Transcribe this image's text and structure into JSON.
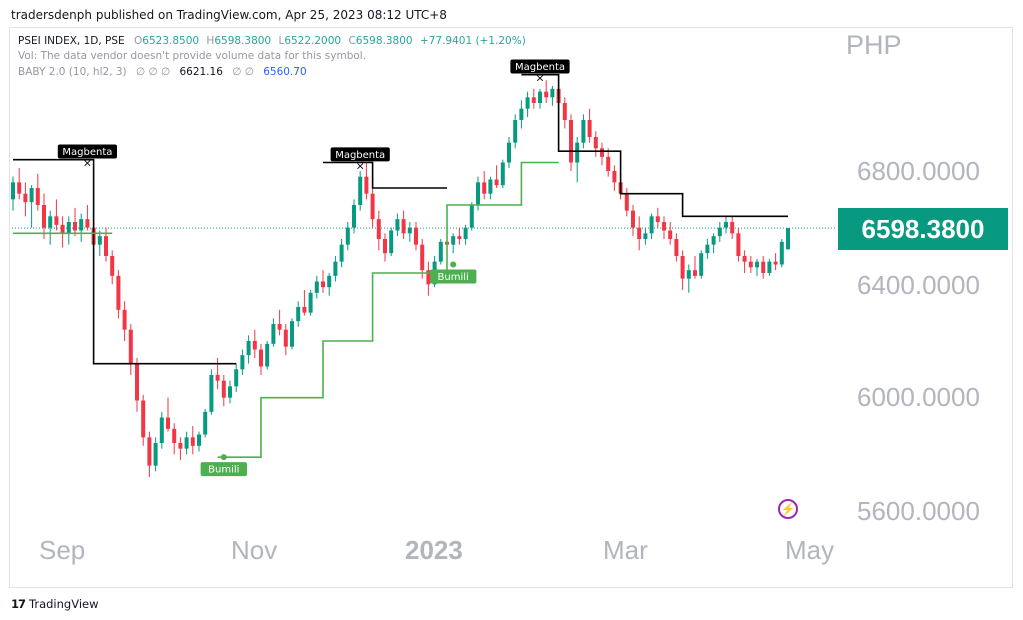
{
  "header": {
    "publisher_line": "tradersdenph published on TradingView.com, Apr 25, 2023 08:12 UTC+8"
  },
  "legend": {
    "symbol": "PSEI INDEX, 1D, PSE",
    "o_label": "O",
    "o_value": "6523.8500",
    "h_label": "H",
    "h_value": "6598.3800",
    "l_label": "L",
    "l_value": "6522.2000",
    "c_label": "C",
    "c_value": "6598.3800",
    "change": "+77.9401 (+1.20%)",
    "vol_note": "Vol: The data vendor doesn't provide volume data for this symbol.",
    "indicator_name": "BABY 2.0 (10, hl2, 3)",
    "indicator_na": "∅  ∅  ∅",
    "indicator_value_1": "6621.16",
    "indicator_na_2": "∅  ∅",
    "indicator_value_2": "6560.70"
  },
  "axis": {
    "currency": "PHP",
    "y_labels": [
      "6800.0000",
      "6400.0000",
      "6000.0000",
      "5600.0000"
    ],
    "x_labels": [
      "Sep",
      "Nov",
      "2023",
      "Mar",
      "May"
    ],
    "last_price": "6598.3800"
  },
  "colors": {
    "up": "#089981",
    "down": "#f23645",
    "resistance": "#000000",
    "support": "#4caf50",
    "last_price_bg": "#089981"
  },
  "footer": {
    "brand": "TradingView",
    "logo": "17"
  },
  "icons": {
    "bolt": "lightning-icon"
  },
  "chart_data": {
    "type": "candlestick",
    "ylim": [
      5400,
      7300
    ],
    "last_price": 6598.38,
    "candles": [
      [
        6700,
        6780,
        6660,
        6760
      ],
      [
        6760,
        6810,
        6700,
        6720
      ],
      [
        6720,
        6760,
        6640,
        6690
      ],
      [
        6690,
        6750,
        6600,
        6740
      ],
      [
        6740,
        6790,
        6660,
        6680
      ],
      [
        6680,
        6720,
        6560,
        6600
      ],
      [
        6600,
        6660,
        6540,
        6640
      ],
      [
        6640,
        6700,
        6590,
        6610
      ],
      [
        6610,
        6640,
        6530,
        6580
      ],
      [
        6580,
        6640,
        6540,
        6620
      ],
      [
        6620,
        6670,
        6570,
        6590
      ],
      [
        6590,
        6650,
        6550,
        6630
      ],
      [
        6630,
        6680,
        6590,
        6600
      ],
      [
        6600,
        6620,
        6510,
        6540
      ],
      [
        6540,
        6590,
        6500,
        6570
      ],
      [
        6570,
        6600,
        6480,
        6500
      ],
      [
        6500,
        6520,
        6400,
        6430
      ],
      [
        6430,
        6450,
        6280,
        6310
      ],
      [
        6310,
        6340,
        6200,
        6240
      ],
      [
        6240,
        6260,
        6080,
        6120
      ],
      [
        6120,
        6140,
        5950,
        5990
      ],
      [
        5990,
        6010,
        5830,
        5860
      ],
      [
        5860,
        5880,
        5720,
        5760
      ],
      [
        5760,
        5860,
        5740,
        5840
      ],
      [
        5840,
        5950,
        5820,
        5930
      ],
      [
        5930,
        6000,
        5880,
        5890
      ],
      [
        5890,
        5910,
        5800,
        5840
      ],
      [
        5840,
        5860,
        5780,
        5820
      ],
      [
        5820,
        5880,
        5800,
        5860
      ],
      [
        5860,
        5900,
        5800,
        5830
      ],
      [
        5830,
        5880,
        5810,
        5870
      ],
      [
        5870,
        5960,
        5860,
        5950
      ],
      [
        5950,
        6100,
        5940,
        6080
      ],
      [
        6080,
        6140,
        6030,
        6060
      ],
      [
        6060,
        6080,
        5970,
        6000
      ],
      [
        6000,
        6060,
        5980,
        6040
      ],
      [
        6040,
        6120,
        6020,
        6100
      ],
      [
        6100,
        6170,
        6080,
        6150
      ],
      [
        6150,
        6220,
        6120,
        6200
      ],
      [
        6200,
        6240,
        6140,
        6170
      ],
      [
        6170,
        6190,
        6080,
        6110
      ],
      [
        6110,
        6200,
        6100,
        6190
      ],
      [
        6190,
        6280,
        6180,
        6260
      ],
      [
        6260,
        6310,
        6220,
        6240
      ],
      [
        6240,
        6260,
        6150,
        6180
      ],
      [
        6180,
        6280,
        6170,
        6270
      ],
      [
        6270,
        6340,
        6250,
        6320
      ],
      [
        6320,
        6380,
        6290,
        6300
      ],
      [
        6300,
        6380,
        6290,
        6370
      ],
      [
        6370,
        6430,
        6350,
        6410
      ],
      [
        6410,
        6450,
        6370,
        6390
      ],
      [
        6390,
        6440,
        6360,
        6430
      ],
      [
        6430,
        6500,
        6410,
        6480
      ],
      [
        6480,
        6560,
        6460,
        6540
      ],
      [
        6540,
        6620,
        6520,
        6600
      ],
      [
        6600,
        6700,
        6580,
        6680
      ],
      [
        6680,
        6800,
        6660,
        6780
      ],
      [
        6780,
        6830,
        6700,
        6720
      ],
      [
        6720,
        6740,
        6600,
        6630
      ],
      [
        6630,
        6660,
        6520,
        6560
      ],
      [
        6560,
        6580,
        6480,
        6510
      ],
      [
        6510,
        6600,
        6500,
        6590
      ],
      [
        6590,
        6650,
        6570,
        6630
      ],
      [
        6630,
        6660,
        6560,
        6580
      ],
      [
        6580,
        6620,
        6550,
        6600
      ],
      [
        6600,
        6620,
        6520,
        6540
      ],
      [
        6540,
        6560,
        6420,
        6450
      ],
      [
        6450,
        6480,
        6360,
        6400
      ],
      [
        6400,
        6500,
        6390,
        6480
      ],
      [
        6480,
        6560,
        6470,
        6550
      ],
      [
        6550,
        6590,
        6520,
        6540
      ],
      [
        6540,
        6580,
        6510,
        6570
      ],
      [
        6570,
        6600,
        6540,
        6560
      ],
      [
        6560,
        6610,
        6540,
        6600
      ],
      [
        6600,
        6690,
        6590,
        6680
      ],
      [
        6680,
        6780,
        6660,
        6760
      ],
      [
        6760,
        6800,
        6700,
        6720
      ],
      [
        6720,
        6780,
        6700,
        6770
      ],
      [
        6770,
        6820,
        6740,
        6750
      ],
      [
        6750,
        6840,
        6740,
        6830
      ],
      [
        6830,
        6920,
        6810,
        6900
      ],
      [
        6900,
        7000,
        6880,
        6980
      ],
      [
        6980,
        7050,
        6950,
        7020
      ],
      [
        7020,
        7080,
        6990,
        7060
      ],
      [
        7060,
        7090,
        7020,
        7040
      ],
      [
        7040,
        7090,
        7020,
        7080
      ],
      [
        7080,
        7120,
        7040,
        7060
      ],
      [
        7060,
        7100,
        7030,
        7090
      ],
      [
        7090,
        7110,
        7020,
        7040
      ],
      [
        7040,
        7060,
        6950,
        6980
      ],
      [
        6980,
        7000,
        6800,
        6830
      ],
      [
        6830,
        6920,
        6760,
        6900
      ],
      [
        6900,
        7000,
        6880,
        6980
      ],
      [
        6980,
        7020,
        6900,
        6920
      ],
      [
        6920,
        6940,
        6850,
        6880
      ],
      [
        6880,
        6900,
        6820,
        6850
      ],
      [
        6850,
        6880,
        6780,
        6800
      ],
      [
        6800,
        6820,
        6730,
        6760
      ],
      [
        6760,
        6790,
        6700,
        6720
      ],
      [
        6720,
        6740,
        6640,
        6660
      ],
      [
        6660,
        6680,
        6570,
        6600
      ],
      [
        6600,
        6640,
        6520,
        6560
      ],
      [
        6560,
        6600,
        6540,
        6580
      ],
      [
        6580,
        6650,
        6560,
        6640
      ],
      [
        6640,
        6670,
        6600,
        6620
      ],
      [
        6620,
        6640,
        6560,
        6590
      ],
      [
        6590,
        6620,
        6540,
        6560
      ],
      [
        6560,
        6580,
        6480,
        6500
      ],
      [
        6500,
        6520,
        6380,
        6420
      ],
      [
        6420,
        6470,
        6370,
        6450
      ],
      [
        6450,
        6500,
        6420,
        6430
      ],
      [
        6430,
        6520,
        6420,
        6510
      ],
      [
        6510,
        6560,
        6490,
        6540
      ],
      [
        6540,
        6580,
        6510,
        6570
      ],
      [
        6570,
        6620,
        6550,
        6600
      ],
      [
        6600,
        6640,
        6580,
        6620
      ],
      [
        6620,
        6640,
        6560,
        6580
      ],
      [
        6580,
        6600,
        6480,
        6500
      ],
      [
        6500,
        6520,
        6440,
        6480
      ],
      [
        6480,
        6500,
        6440,
        6460
      ],
      [
        6460,
        6490,
        6430,
        6480
      ],
      [
        6480,
        6500,
        6420,
        6440
      ],
      [
        6440,
        6490,
        6430,
        6480
      ],
      [
        6480,
        6510,
        6450,
        6470
      ],
      [
        6470,
        6560,
        6460,
        6550
      ],
      [
        6523.85,
        6598.38,
        6522.2,
        6598.38
      ]
    ],
    "resistance_line": {
      "label": "Magbenta",
      "segments": [
        {
          "from": 0,
          "to": 13,
          "value": 6840
        },
        {
          "from": 13,
          "to": 22,
          "value": 6120
        },
        {
          "from": 22,
          "to": 36,
          "value": 6120
        },
        {
          "from": 50,
          "to": 58,
          "value": 6830
        },
        {
          "from": 58,
          "to": 70,
          "value": 6740
        },
        {
          "from": 82,
          "to": 88,
          "value": 7140
        },
        {
          "from": 88,
          "to": 98,
          "value": 6870
        },
        {
          "from": 98,
          "to": 108,
          "value": 6720
        },
        {
          "from": 108,
          "to": 125,
          "value": 6640
        }
      ]
    },
    "support_line": {
      "label": "Bumili",
      "segments": [
        {
          "from": 0,
          "to": 16,
          "value": 6580
        },
        {
          "from": 33,
          "to": 40,
          "value": 5790
        },
        {
          "from": 40,
          "to": 50,
          "value": 6000
        },
        {
          "from": 50,
          "to": 58,
          "value": 6200
        },
        {
          "from": 58,
          "to": 70,
          "value": 6440
        },
        {
          "from": 70,
          "to": 82,
          "value": 6680
        },
        {
          "from": 82,
          "to": 88,
          "value": 6830
        }
      ]
    },
    "annotations": [
      {
        "text": "Magbenta",
        "index": 12,
        "value": 6830,
        "kind": "sell"
      },
      {
        "text": "Magbenta",
        "index": 56,
        "value": 6820,
        "kind": "sell"
      },
      {
        "text": "Magbenta",
        "index": 85,
        "value": 7130,
        "kind": "sell"
      },
      {
        "text": "Bumili",
        "index": 34,
        "value": 5790,
        "kind": "buy"
      },
      {
        "text": "Bumili",
        "index": 71,
        "value": 6470,
        "kind": "buy"
      }
    ]
  }
}
